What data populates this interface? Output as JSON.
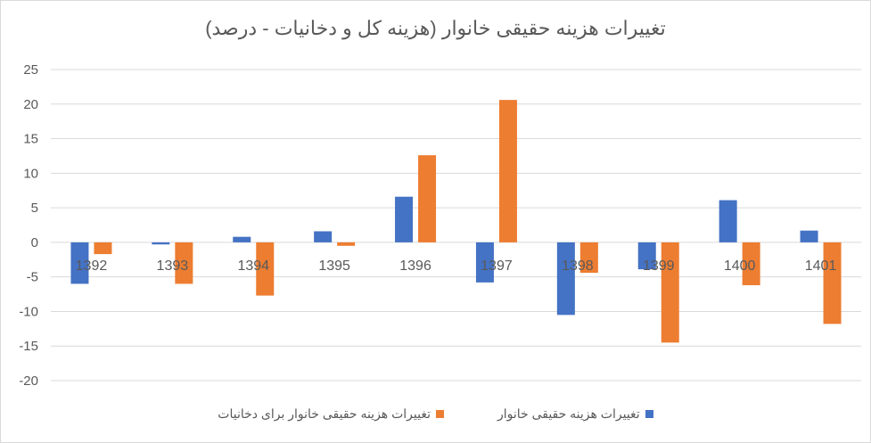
{
  "chart_data": {
    "type": "bar",
    "title": "تغییرات هزینه حقیقی خانوار (هزینه کل و دخانیات - درصد)",
    "categories": [
      "1392",
      "1393",
      "1394",
      "1395",
      "1396",
      "1397",
      "1398",
      "1399",
      "1400",
      "1401"
    ],
    "series": [
      {
        "name": "تغییرات هزینه حقیقی خانوار",
        "color": "#4472C4",
        "values": [
          -6.0,
          -0.3,
          0.8,
          1.6,
          6.6,
          -5.8,
          -10.5,
          -3.9,
          6.1,
          1.7
        ]
      },
      {
        "name": "تغییرات هزینه حقیقی خانوار برای دخانیات",
        "color": "#ED7D31",
        "values": [
          -1.7,
          -6.0,
          -7.7,
          -0.5,
          12.6,
          20.6,
          -4.4,
          -14.5,
          -6.2,
          -11.8
        ]
      }
    ],
    "ylim": [
      -20,
      25
    ],
    "yticks": [
      25,
      20,
      15,
      10,
      5,
      0,
      -5,
      -10,
      -15,
      -20
    ],
    "grid": true,
    "legend_position": "bottom"
  }
}
